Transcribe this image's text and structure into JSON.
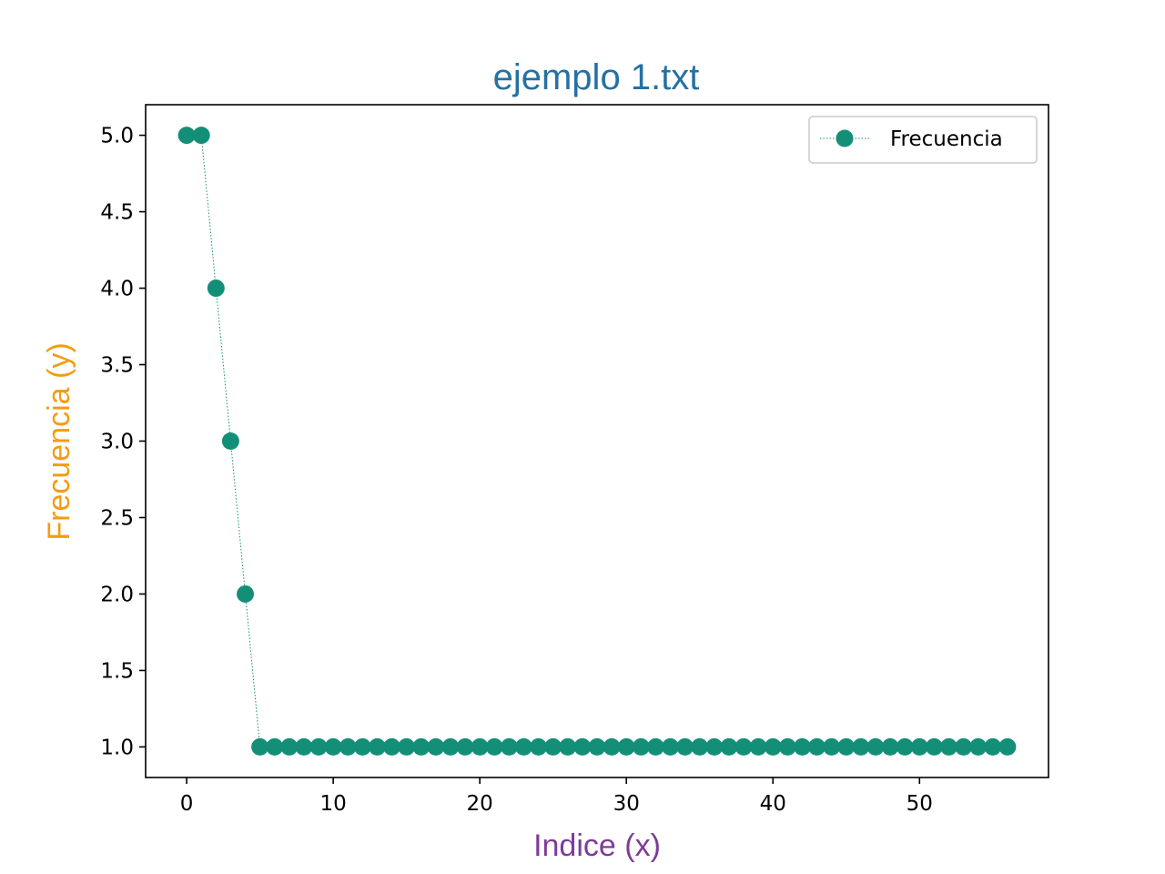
{
  "chart_data": {
    "type": "line",
    "title": "ejemplo 1.txt",
    "xlabel": "Indice (x)",
    "ylabel": "Frecuencia (y)",
    "xlim": [
      -2.8,
      58.8
    ],
    "ylim": [
      0.8,
      5.2
    ],
    "xticks": [
      0,
      10,
      20,
      30,
      40,
      50
    ],
    "yticks": [
      1.0,
      1.5,
      2.0,
      2.5,
      3.0,
      3.5,
      4.0,
      4.5,
      5.0
    ],
    "grid": false,
    "legend_position": "top-right",
    "series": [
      {
        "name": "Frecuencia",
        "color": "#148f77",
        "marker": "circle",
        "linestyle": "dotted",
        "x": [
          0,
          1,
          2,
          3,
          4,
          5,
          6,
          7,
          8,
          9,
          10,
          11,
          12,
          13,
          14,
          15,
          16,
          17,
          18,
          19,
          20,
          21,
          22,
          23,
          24,
          25,
          26,
          27,
          28,
          29,
          30,
          31,
          32,
          33,
          34,
          35,
          36,
          37,
          38,
          39,
          40,
          41,
          42,
          43,
          44,
          45,
          46,
          47,
          48,
          49,
          50,
          51,
          52,
          53,
          54,
          55,
          56
        ],
        "values": [
          5,
          5,
          4,
          3,
          2,
          1,
          1,
          1,
          1,
          1,
          1,
          1,
          1,
          1,
          1,
          1,
          1,
          1,
          1,
          1,
          1,
          1,
          1,
          1,
          1,
          1,
          1,
          1,
          1,
          1,
          1,
          1,
          1,
          1,
          1,
          1,
          1,
          1,
          1,
          1,
          1,
          1,
          1,
          1,
          1,
          1,
          1,
          1,
          1,
          1,
          1,
          1,
          1,
          1,
          1,
          1,
          1
        ]
      }
    ],
    "colors": {
      "title": "#2471a3",
      "xlabel": "#7d3c98",
      "ylabel": "#f39c12"
    }
  }
}
